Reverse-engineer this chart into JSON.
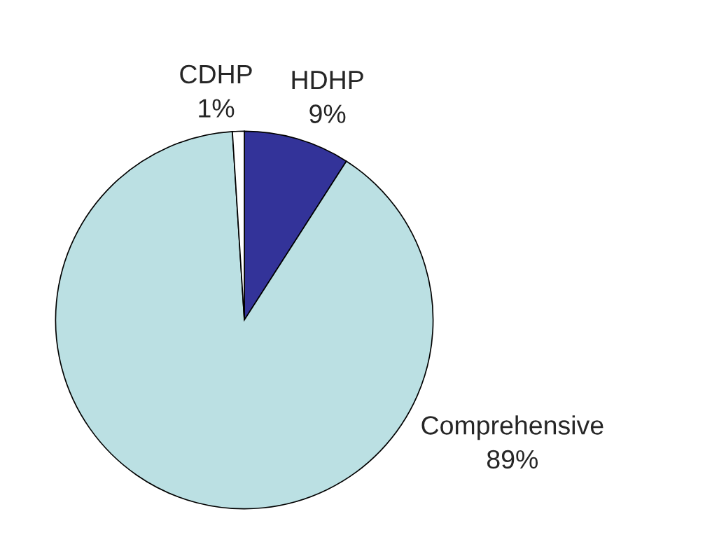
{
  "chart_data": {
    "type": "pie",
    "categories": [
      "HDHP",
      "Comprehensive",
      "CDHP"
    ],
    "values": [
      9,
      89,
      1
    ],
    "value_labels": [
      "9%",
      "89%",
      "1%"
    ],
    "colors": [
      "#333399",
      "#bbe0e3",
      "#ffffff"
    ]
  }
}
